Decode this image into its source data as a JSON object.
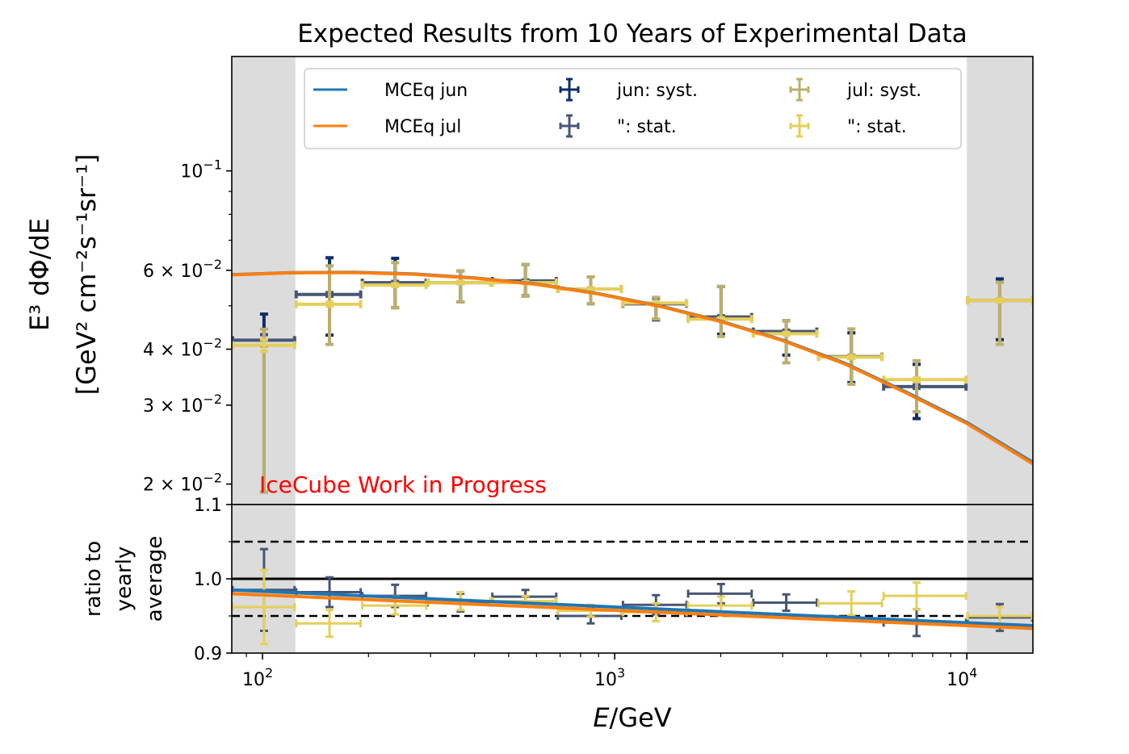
{
  "chart_data": {
    "type": "scatter",
    "title": "Expected Results from 10 Years of Experimental Data",
    "xlabel": "E/GeV",
    "xscale": "log",
    "xlim": [
      81.8,
      15400
    ],
    "x_ticks": [
      {
        "value": 100,
        "base": "10",
        "exp": "2"
      },
      {
        "value": 1000,
        "base": "10",
        "exp": "3"
      },
      {
        "value": 10000,
        "base": "10",
        "exp": "4"
      }
    ],
    "shaded_regions": [
      [
        81.8,
        124
      ],
      [
        10000,
        15400
      ]
    ],
    "bin_edges": [
      81.8,
      124,
      191,
      293,
      447,
      686,
      1050,
      1608,
      2462,
      3770,
      5773,
      10000,
      15400
    ],
    "bin_centers": [
      101,
      155,
      238,
      365,
      558,
      855,
      1310,
      2005,
      3070,
      4700,
      7200,
      12400
    ],
    "main_panel": {
      "ylabel_line1": "E³ dΦ/dE",
      "ylabel_line2": "[GeV² cm⁻²s⁻¹sr⁻¹]",
      "yscale": "log",
      "ylim": [
        0.018,
        0.18
      ],
      "y_ticks": [
        {
          "value": 0.1,
          "label": "10",
          "exp": "−1",
          "prefix": ""
        },
        {
          "value": 0.06,
          "label": "10",
          "exp": "−2",
          "prefix": "6 × "
        },
        {
          "value": 0.04,
          "label": "10",
          "exp": "−2",
          "prefix": "4 × "
        },
        {
          "value": 0.03,
          "label": "10",
          "exp": "−2",
          "prefix": "3 × "
        },
        {
          "value": 0.02,
          "label": "10",
          "exp": "−2",
          "prefix": "2 × "
        }
      ],
      "annotation": "IceCube Work in Progress",
      "series": [
        {
          "name": "MCEq jun",
          "kind": "line",
          "color": "#1f77b4",
          "x": [
            81.8,
            120,
            180,
            270,
            400,
            600,
            900,
            1350,
            2000,
            3000,
            4500,
            6700,
            10000,
            15400
          ],
          "values": [
            0.0588,
            0.0594,
            0.0595,
            0.059,
            0.0578,
            0.056,
            0.0533,
            0.05,
            0.0463,
            0.042,
            0.0373,
            0.0322,
            0.0275,
            0.0224
          ]
        },
        {
          "name": "MCEq jul",
          "kind": "line",
          "color": "#ff7f0e",
          "x": [
            81.8,
            120,
            180,
            270,
            400,
            600,
            900,
            1350,
            2000,
            3000,
            4500,
            6700,
            10000,
            15400
          ],
          "values": [
            0.0586,
            0.0592,
            0.0593,
            0.0588,
            0.0576,
            0.0558,
            0.0531,
            0.0498,
            0.0461,
            0.0418,
            0.0371,
            0.032,
            0.0273,
            0.0222
          ]
        },
        {
          "name": "jun: syst.",
          "kind": "errorbar",
          "color": "#0e2e6b",
          "values": [
            0.0419,
            0.053,
            0.0563,
            0.0563,
            0.0568,
            0.0545,
            0.0505,
            0.0472,
            0.0438,
            0.0385,
            0.033,
            0.0514
          ],
          "err_low": [
            0.0227,
            0.01,
            0.0068,
            0.0053,
            0.0042,
            0.004,
            0.004,
            0.004,
            0.005,
            0.0048,
            0.005,
            0.0094
          ],
          "err_high": [
            0.006,
            0.011,
            0.0075,
            0.0035,
            0.005,
            0.0035,
            0.0015,
            0.008,
            0.0025,
            0.005,
            0.004,
            0.006
          ]
        },
        {
          "name": "\": stat.",
          "kind": "errorbar",
          "color": "#485674",
          "values": [
            0.0419,
            0.053,
            0.0563,
            0.0563,
            0.0568,
            0.0545,
            0.0505,
            0.0472,
            0.0438,
            0.0385,
            0.033,
            0.0514
          ],
          "err_low": [
            0.0012,
            0.0005,
            0.0004,
            0.0003,
            0.0003,
            0.0003,
            0.0003,
            0.0003,
            0.0003,
            0.0003,
            0.0003,
            0.0004
          ],
          "err_high": [
            0.0012,
            0.0005,
            0.0004,
            0.0003,
            0.0003,
            0.0003,
            0.0003,
            0.0003,
            0.0003,
            0.0003,
            0.0003,
            0.0004
          ]
        },
        {
          "name": "jul: syst.",
          "kind": "errorbar",
          "color": "#bcaf6e",
          "values": [
            0.0408,
            0.0504,
            0.0556,
            0.0563,
            0.0563,
            0.0545,
            0.0507,
            0.0467,
            0.0433,
            0.0384,
            0.0342,
            0.0514
          ],
          "err_low": [
            0.0216,
            0.0094,
            0.0061,
            0.0053,
            0.0038,
            0.004,
            0.004,
            0.004,
            0.006,
            0.005,
            0.0052,
            0.0104
          ],
          "err_high": [
            0.0035,
            0.011,
            0.0068,
            0.0035,
            0.0055,
            0.0035,
            0.0015,
            0.0085,
            0.003,
            0.006,
            0.0035,
            0.005
          ]
        },
        {
          "name": "\": stat.",
          "kind": "errorbar",
          "color": "#e5cf5a",
          "values": [
            0.0408,
            0.0504,
            0.0556,
            0.0563,
            0.0563,
            0.0545,
            0.0507,
            0.0467,
            0.0433,
            0.0384,
            0.0342,
            0.0514
          ],
          "err_low": [
            0.0012,
            0.0005,
            0.0004,
            0.0003,
            0.0003,
            0.0003,
            0.0003,
            0.0003,
            0.0003,
            0.0003,
            0.0003,
            0.0004
          ],
          "err_high": [
            0.0012,
            0.0005,
            0.0004,
            0.0003,
            0.0003,
            0.0003,
            0.0003,
            0.0003,
            0.0003,
            0.0003,
            0.0003,
            0.0004
          ]
        }
      ]
    },
    "ratio_panel": {
      "ylabel": [
        "ratio to",
        "yearly",
        "average"
      ],
      "ylim": [
        0.9,
        1.1
      ],
      "y_ticks": [
        {
          "value": 1.1,
          "label": "1.1"
        },
        {
          "value": 1.0,
          "label": "1.0"
        },
        {
          "value": 0.9,
          "label": "0.9"
        }
      ],
      "reference_lines": [
        {
          "value": 1.0,
          "style": "solid"
        },
        {
          "value": 1.05,
          "style": "dashed"
        },
        {
          "value": 0.95,
          "style": "dashed"
        }
      ],
      "series": [
        {
          "name": "MCEq jun",
          "kind": "line",
          "color": "#1f77b4",
          "x": [
            81.8,
            15400
          ],
          "values": [
            0.985,
            0.937
          ]
        },
        {
          "name": "MCEq jul",
          "kind": "line",
          "color": "#ff7f0e",
          "x": [
            81.8,
            15400
          ],
          "values": [
            0.98,
            0.933
          ]
        },
        {
          "name": "jun",
          "kind": "errorbar",
          "color": "#485674",
          "values": [
            0.985,
            0.982,
            0.977,
            0.968,
            0.976,
            0.95,
            0.965,
            0.98,
            0.968,
            0.941,
            0.948
          ],
          "err": [
            0.055,
            0.02,
            0.015,
            0.012,
            0.009,
            0.01,
            0.013,
            0.013,
            0.011,
            0.018,
            0.018
          ],
          "bins": [
            0,
            1,
            2,
            3,
            4,
            5,
            6,
            7,
            8,
            10,
            11
          ]
        },
        {
          "name": "jul",
          "kind": "errorbar",
          "color": "#e5cf5a",
          "values": [
            0.962,
            0.94,
            0.964,
            0.97,
            0.97,
            0.957,
            0.955,
            0.964,
            0.967,
            0.977,
            0.95
          ],
          "err": [
            0.05,
            0.018,
            0.012,
            0.012,
            0.007,
            0.008,
            0.012,
            0.012,
            0.016,
            0.018,
            0.012
          ],
          "bins": [
            0,
            1,
            2,
            3,
            4,
            5,
            6,
            7,
            9,
            10,
            11
          ]
        }
      ]
    },
    "legend": {
      "placement": "top-center",
      "columns": 3,
      "entries": [
        {
          "label": "MCEq jun",
          "kind": "line",
          "color": "#1f77b4"
        },
        {
          "label": "MCEq jul",
          "kind": "line",
          "color": "#ff7f0e"
        },
        {
          "label": "jun: syst.",
          "kind": "errorbar",
          "color": "#0e2e6b"
        },
        {
          "label": "\": stat.",
          "kind": "errorbar",
          "color": "#485674"
        },
        {
          "label": "jul: syst.",
          "kind": "errorbar",
          "color": "#bcaf6e"
        },
        {
          "label": "\": stat.",
          "kind": "errorbar",
          "color": "#e5cf5a"
        }
      ]
    },
    "colors": {
      "shade": "#dcdcdc",
      "annotation": "#ff0000",
      "axis": "#000000"
    }
  }
}
